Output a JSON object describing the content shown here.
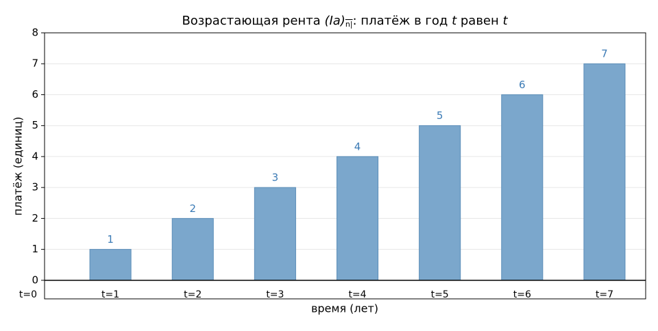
{
  "chart_data": {
    "type": "bar",
    "title": [
      "Возрастающая рента ",
      "(Ia)",
      "n|",
      ": платёж в год ",
      "t",
      " равен ",
      "t"
    ],
    "x_label": "время (лет)",
    "y_label": "платёж (единиц)",
    "x": [
      1,
      2,
      3,
      4,
      5,
      6,
      7
    ],
    "values": [
      1,
      2,
      3,
      4,
      5,
      6,
      7
    ],
    "time_labels": [
      {
        "value": 0,
        "label": "t=0"
      },
      {
        "value": 1,
        "label": "t=1"
      },
      {
        "value": 2,
        "label": "t=2"
      },
      {
        "value": 3,
        "label": "t=3"
      },
      {
        "value": 4,
        "label": "t=4"
      },
      {
        "value": 5,
        "label": "t=5"
      },
      {
        "value": 6,
        "label": "t=6"
      },
      {
        "value": 7,
        "label": "t=7"
      }
    ],
    "bar_width": 0.5,
    "color": "#7ba7cc",
    "edge_color": "#5b8db8",
    "value_label_color": "#3a7ab5",
    "xlim": [
      0.2,
      7.5
    ],
    "ylim": [
      -0.6,
      8
    ],
    "yticks": [
      0,
      1,
      2,
      3,
      4,
      5,
      6,
      7,
      8
    ],
    "grid": true
  }
}
